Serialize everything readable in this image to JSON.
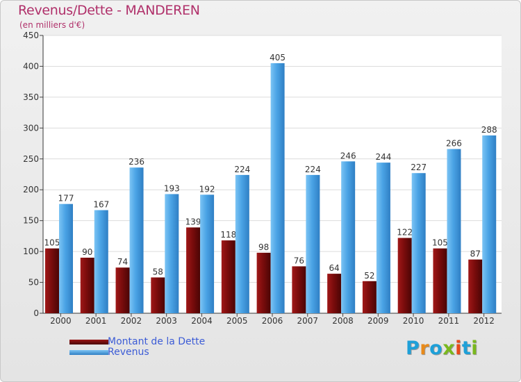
{
  "title": "Revenus/Dette - MANDEREN",
  "subtitle": "(en milliers d'€)",
  "colors": {
    "title": "#b0306a",
    "dette": "#6e0a0a",
    "revenus": "#4aa3e5",
    "legend_text": "#3c5cd6"
  },
  "legend": {
    "items": [
      {
        "label": "Montant de la Dette",
        "color": "#6e0a0a"
      },
      {
        "label": "Revenus",
        "color": "#4aa3e5"
      }
    ]
  },
  "logo": {
    "letters": [
      "P",
      "r",
      "o",
      "x",
      "i",
      "t",
      "i"
    ],
    "colors": [
      "#1ea0d8",
      "#e88a1a",
      "#1ea0d8",
      "#7ab81e",
      "#e84a1a",
      "#1ea0d8",
      "#7ab81e"
    ]
  },
  "chart_data": {
    "type": "bar",
    "title": "Revenus/Dette - MANDEREN",
    "ylabel": "(en milliers d'€)",
    "xlabel": "",
    "categories": [
      "2000",
      "2001",
      "2002",
      "2003",
      "2004",
      "2005",
      "2006",
      "2007",
      "2008",
      "2009",
      "2010",
      "2011",
      "2012"
    ],
    "series": [
      {
        "name": "Montant de la Dette",
        "values": [
          105,
          90,
          74,
          58,
          139,
          118,
          98,
          76,
          64,
          52,
          122,
          105,
          87
        ]
      },
      {
        "name": "Revenus",
        "values": [
          177,
          167,
          236,
          193,
          192,
          224,
          405,
          224,
          246,
          244,
          227,
          266,
          288
        ]
      }
    ],
    "ylim": [
      0,
      450
    ],
    "yticks": [
      0,
      50,
      100,
      150,
      200,
      250,
      300,
      350,
      400,
      450
    ],
    "grid": true,
    "legend_position": "bottom-left"
  }
}
